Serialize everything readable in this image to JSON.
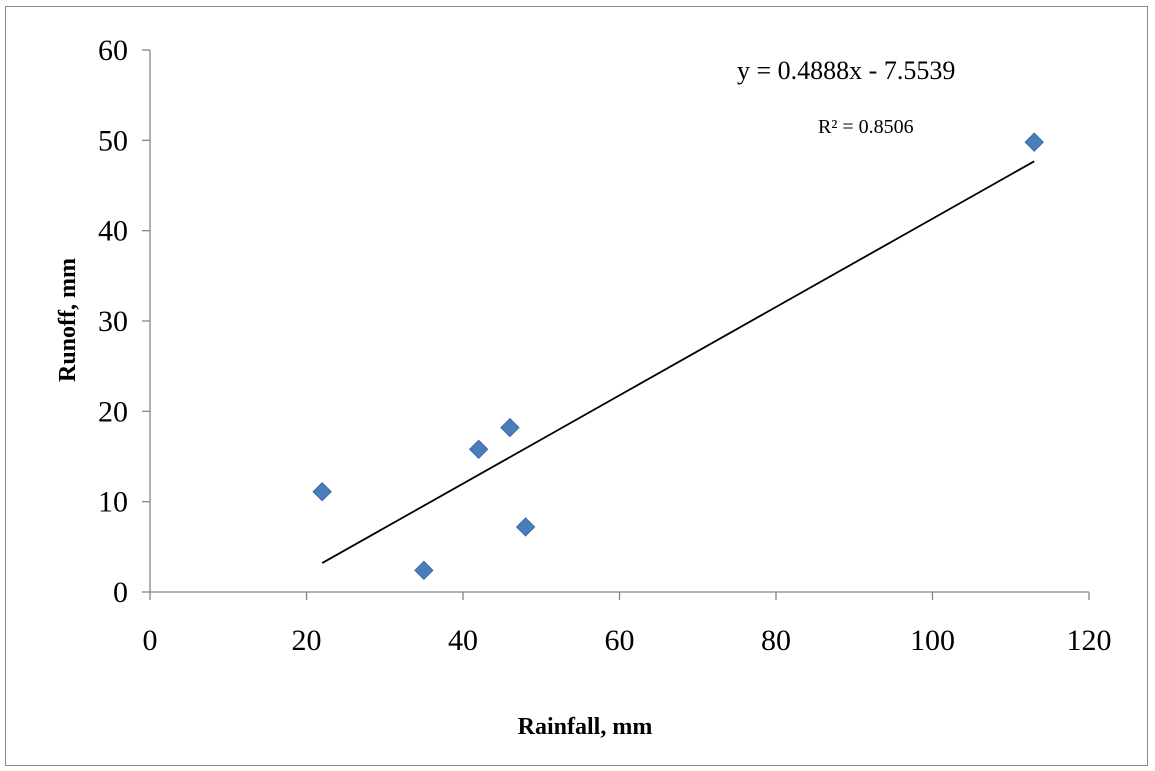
{
  "chart_data": {
    "type": "scatter",
    "title": "",
    "xlabel": "Rainfall, mm",
    "ylabel": "Runoff, mm",
    "xlim": [
      0,
      120
    ],
    "ylim": [
      0,
      60
    ],
    "xticks": [
      "0",
      "20",
      "40",
      "60",
      "80",
      "100",
      "120"
    ],
    "yticks": [
      "0",
      "10",
      "20",
      "30",
      "40",
      "50",
      "60"
    ],
    "grid": false,
    "legend": "none",
    "series": [
      {
        "marker": "diamond",
        "color": "#4a7ebb",
        "points": [
          {
            "x": 22,
            "y": 11.1
          },
          {
            "x": 35,
            "y": 2.4
          },
          {
            "x": 42,
            "y": 15.8
          },
          {
            "x": 46,
            "y": 18.2
          },
          {
            "x": 48,
            "y": 7.2
          },
          {
            "x": 113,
            "y": 49.8
          }
        ]
      }
    ],
    "trendline": {
      "type": "linear",
      "slope": 0.4888,
      "intercept": -7.5539,
      "x_range": [
        22,
        113
      ],
      "color": "#000000",
      "equation_label": "y = 0.4888x - 7.5539",
      "r2_label": "R² = 0.8506"
    }
  }
}
